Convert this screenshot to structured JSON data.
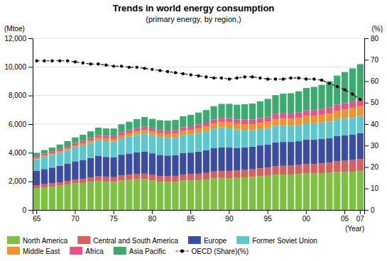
{
  "chart_data": {
    "type": "bar",
    "stacked": true,
    "title": "Trends in world energy consumption",
    "subtitle": "(primary energy, by region,)",
    "ylabel": "(Mtoe)",
    "y2label": "(%)",
    "xlabel": "(Year)",
    "categories": [
      "65",
      null,
      null,
      null,
      null,
      "70",
      null,
      null,
      null,
      null,
      "75",
      null,
      null,
      null,
      null,
      "80",
      null,
      null,
      null,
      null,
      "85",
      null,
      null,
      null,
      null,
      "90",
      null,
      null,
      null,
      null,
      "95",
      null,
      null,
      null,
      null,
      "00",
      null,
      null,
      null,
      null,
      "05",
      null,
      "07"
    ],
    "series": [
      {
        "name": "North America",
        "color": "#7DC142",
        "values": [
          1530,
          1590,
          1640,
          1700,
          1780,
          1850,
          1890,
          1970,
          2040,
          1990,
          1960,
          2060,
          2100,
          2150,
          2150,
          2050,
          1980,
          1960,
          1970,
          2050,
          2060,
          2090,
          2130,
          2210,
          2240,
          2230,
          2240,
          2280,
          2310,
          2360,
          2390,
          2460,
          2480,
          2480,
          2520,
          2570,
          2560,
          2580,
          2590,
          2650,
          2660,
          2680,
          2710
        ]
      },
      {
        "name": "Central and South America",
        "color": "#D95F5F",
        "values": [
          200,
          210,
          220,
          230,
          245,
          260,
          275,
          290,
          310,
          320,
          330,
          350,
          365,
          375,
          390,
          400,
          400,
          405,
          415,
          425,
          435,
          445,
          460,
          475,
          490,
          500,
          510,
          520,
          530,
          550,
          570,
          590,
          605,
          615,
          625,
          645,
          660,
          680,
          710,
          750,
          780,
          810,
          850
        ]
      },
      {
        "name": "Europe",
        "color": "#3B4DA0",
        "values": [
          1000,
          1060,
          1100,
          1160,
          1220,
          1290,
          1330,
          1380,
          1440,
          1400,
          1380,
          1450,
          1480,
          1510,
          1550,
          1510,
          1470,
          1440,
          1440,
          1500,
          1510,
          1550,
          1580,
          1630,
          1650,
          1630,
          1590,
          1580,
          1580,
          1600,
          1620,
          1670,
          1670,
          1660,
          1660,
          1700,
          1700,
          1710,
          1720,
          1760,
          1770,
          1790,
          1800
        ]
      },
      {
        "name": "Former Soviet Union",
        "color": "#5BC8D0",
        "values": [
          820,
          850,
          880,
          910,
          940,
          980,
          1010,
          1040,
          1080,
          1100,
          1110,
          1150,
          1190,
          1230,
          1260,
          1260,
          1250,
          1240,
          1230,
          1270,
          1290,
          1310,
          1330,
          1380,
          1400,
          1390,
          1280,
          1220,
          1160,
          1140,
          1140,
          1170,
          1160,
          1140,
          1130,
          1140,
          1140,
          1140,
          1160,
          1190,
          1200,
          1210,
          1220
        ]
      },
      {
        "name": "Middle East",
        "color": "#F4922A",
        "values": [
          80,
          90,
          100,
          110,
          120,
          135,
          150,
          165,
          185,
          185,
          185,
          200,
          215,
          230,
          250,
          255,
          260,
          265,
          270,
          285,
          295,
          310,
          325,
          340,
          360,
          375,
          390,
          400,
          415,
          430,
          445,
          460,
          475,
          485,
          500,
          515,
          530,
          545,
          565,
          590,
          615,
          640,
          670
        ]
      },
      {
        "name": "Africa",
        "color": "#E8538A",
        "values": [
          130,
          135,
          140,
          148,
          155,
          165,
          172,
          180,
          188,
          193,
          200,
          208,
          215,
          220,
          228,
          232,
          235,
          238,
          242,
          250,
          258,
          265,
          275,
          285,
          295,
          305,
          315,
          320,
          328,
          335,
          345,
          355,
          362,
          370,
          378,
          385,
          393,
          400,
          415,
          430,
          445,
          455,
          470
        ]
      },
      {
        "name": "Asia Pacific",
        "color": "#3BAA6E",
        "values": [
          230,
          255,
          280,
          315,
          355,
          390,
          430,
          470,
          510,
          510,
          525,
          570,
          600,
          635,
          670,
          660,
          675,
          695,
          725,
          770,
          800,
          840,
          880,
          935,
          975,
          990,
          1030,
          1075,
          1115,
          1180,
          1250,
          1320,
          1380,
          1410,
          1480,
          1570,
          1620,
          1690,
          1830,
          2020,
          2170,
          2310,
          2470
        ]
      },
      {
        "name": "OECD (Share)(%)",
        "type": "line",
        "axis": "y2",
        "color": "black",
        "marker": "circle",
        "line_style": "dashed",
        "values": [
          69.5,
          69.5,
          69.5,
          69.5,
          69.5,
          69.0,
          68.5,
          68.0,
          68.0,
          67.5,
          67.0,
          67.0,
          66.5,
          66.5,
          66.0,
          65.5,
          65.0,
          64.5,
          64.0,
          63.5,
          63.0,
          62.5,
          62.0,
          61.5,
          61.5,
          61.0,
          61.5,
          62.0,
          62.0,
          61.5,
          61.0,
          61.0,
          61.0,
          61.5,
          61.5,
          61.0,
          61.0,
          60.5,
          59.0,
          57.5,
          56.0,
          54.0,
          51.5
        ]
      }
    ],
    "ylim": [
      0,
      12000
    ],
    "yticks": [
      0,
      {
        "value": 2000,
        "label": "2,000"
      },
      {
        "value": 4000,
        "label": "4,000"
      },
      {
        "value": 6000,
        "label": "6,000"
      },
      {
        "value": 8000,
        "label": "8,000"
      },
      {
        "value": 10000,
        "label": "10,000"
      },
      {
        "value": 12000,
        "label": "12,000"
      }
    ],
    "y2lim": [
      0,
      80
    ],
    "y2ticks": [
      0,
      10,
      20,
      30,
      40,
      50,
      60,
      70,
      80
    ],
    "grid": true,
    "legend": "bottom"
  }
}
